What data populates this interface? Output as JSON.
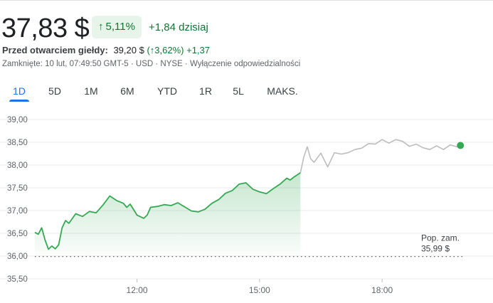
{
  "quote": {
    "price": "37,83 $",
    "change_pct": "5,11%",
    "change_abs": "+1,84 dzisiaj"
  },
  "premarket": {
    "label": "Przed otwarciem giełdy:",
    "price": "39,20 $",
    "change_pct": "(↑3,62%)",
    "change_abs": "+1,37"
  },
  "meta": {
    "text": "Zamknięte: 10 lut, 07:49:50 GMT-5 · USD · NYSE · Wyłączenie odpowiedzialności"
  },
  "tabs": [
    {
      "label": "1D"
    },
    {
      "label": "5D"
    },
    {
      "label": "1M"
    },
    {
      "label": "6M"
    },
    {
      "label": "YTD"
    },
    {
      "label": "1R"
    },
    {
      "label": "5L"
    },
    {
      "label": "MAKS."
    }
  ],
  "colors": {
    "positive": "#137333",
    "line_regular": "#34a853",
    "line_extended": "#bdbdbd",
    "accent": "#1a73e8"
  },
  "icons": {
    "change_arrow": "arrow-up-icon"
  },
  "chart_data": {
    "type": "line",
    "ylim": [
      35.5,
      39.0
    ],
    "yticks": [
      "39,00",
      "38,50",
      "38,00",
      "37,50",
      "37,00",
      "36,50",
      "36,00",
      "35,50"
    ],
    "ytick_values": [
      39.0,
      38.5,
      38.0,
      37.5,
      37.0,
      36.5,
      36.0,
      35.5
    ],
    "xlim": [
      "09:30",
      "20:00"
    ],
    "xticks": [
      "12:00",
      "15:00",
      "18:00"
    ],
    "xtick_values": [
      "12:00",
      "15:00",
      "18:00"
    ],
    "previous_close": {
      "label_line1": "Pop. zam.",
      "label_line2": "35,99 $",
      "value": 35.99
    },
    "series": [
      {
        "session": "regular",
        "x": [
          "09:30",
          "09:35",
          "09:40",
          "09:45",
          "09:50",
          "09:55",
          "10:00",
          "10:05",
          "10:10",
          "10:15",
          "10:20",
          "10:30",
          "10:40",
          "10:50",
          "11:00",
          "11:10",
          "11:20",
          "11:30",
          "11:40",
          "11:45",
          "11:50",
          "12:00",
          "12:10",
          "12:15",
          "12:20",
          "12:30",
          "12:40",
          "12:50",
          "13:00",
          "13:10",
          "13:20",
          "13:30",
          "13:40",
          "13:50",
          "14:00",
          "14:10",
          "14:20",
          "14:30",
          "14:40",
          "14:50",
          "15:00",
          "15:10",
          "15:20",
          "15:30",
          "15:40",
          "15:45",
          "15:50",
          "16:00"
        ],
        "y": [
          36.52,
          36.48,
          36.62,
          36.35,
          36.15,
          36.22,
          36.16,
          36.25,
          36.62,
          36.78,
          36.72,
          36.93,
          36.87,
          36.98,
          36.95,
          37.12,
          37.32,
          37.22,
          37.16,
          37.07,
          37.14,
          36.9,
          36.83,
          36.9,
          37.07,
          37.09,
          37.13,
          37.11,
          37.17,
          37.08,
          36.99,
          36.97,
          37.03,
          37.16,
          37.24,
          37.38,
          37.44,
          37.58,
          37.61,
          37.47,
          37.41,
          37.37,
          37.48,
          37.58,
          37.71,
          37.67,
          37.73,
          37.83
        ]
      },
      {
        "session": "extended",
        "x": [
          "16:00",
          "16:05",
          "16:10",
          "16:15",
          "16:20",
          "16:30",
          "16:40",
          "16:50",
          "17:00",
          "17:10",
          "17:20",
          "17:30",
          "17:40",
          "17:50",
          "18:00",
          "18:10",
          "18:20",
          "18:30",
          "18:40",
          "18:50",
          "19:00",
          "19:10",
          "19:20",
          "19:30",
          "19:40",
          "19:50",
          "19:55"
        ],
        "y": [
          37.83,
          38.18,
          38.4,
          38.14,
          38.06,
          38.26,
          37.96,
          38.27,
          38.24,
          38.27,
          38.34,
          38.37,
          38.47,
          38.46,
          38.56,
          38.48,
          38.56,
          38.52,
          38.41,
          38.46,
          38.38,
          38.34,
          38.42,
          38.34,
          38.44,
          38.4,
          38.43
        ]
      }
    ]
  }
}
